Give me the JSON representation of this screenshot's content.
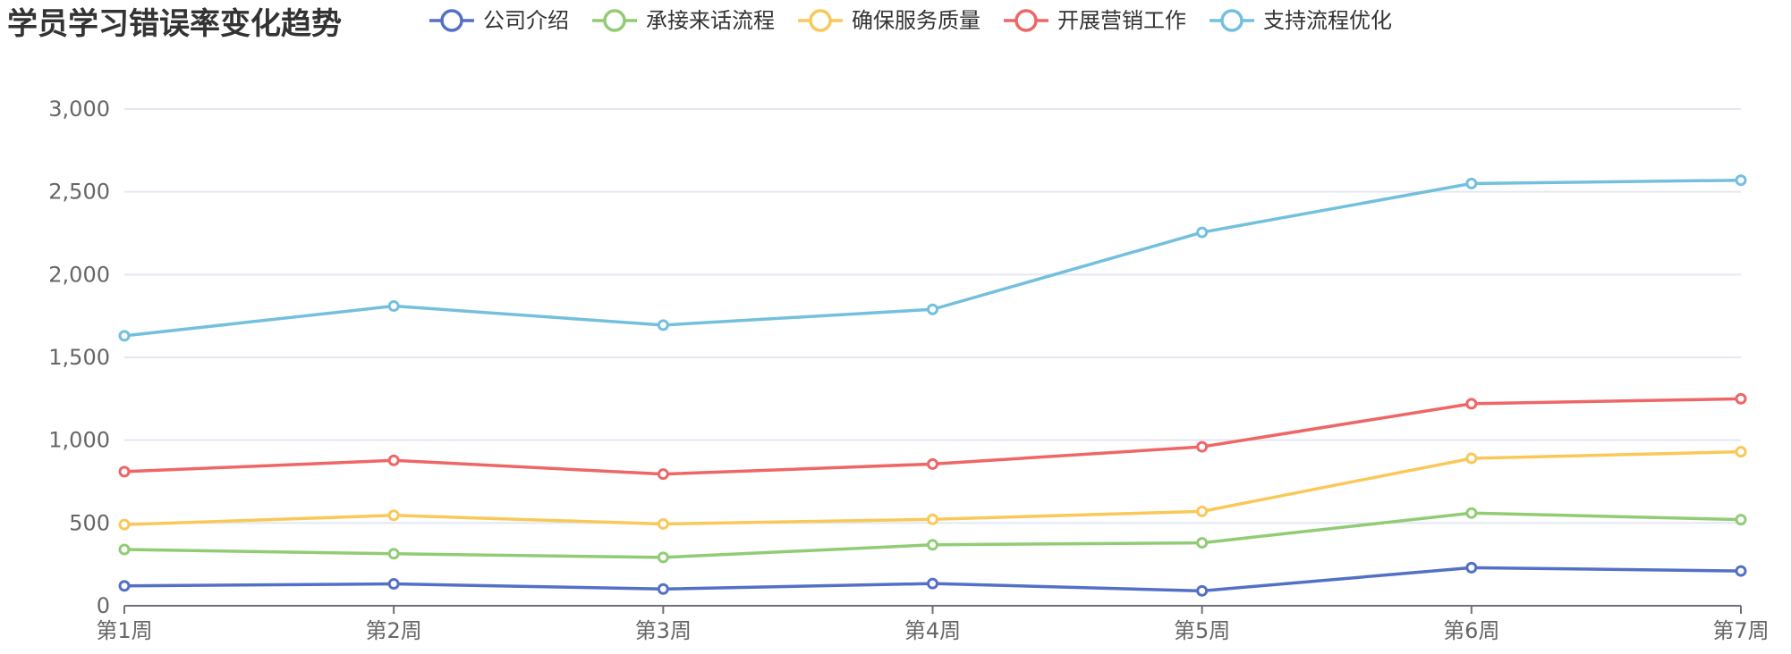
{
  "chart_data": {
    "type": "line",
    "title": "学员学习错误率变化趋势",
    "xlabel": "",
    "ylabel": "",
    "categories": [
      "第1周",
      "第2周",
      "第3周",
      "第4周",
      "第5周",
      "第6周",
      "第7周"
    ],
    "ylim": [
      0,
      3000
    ],
    "yticks": [
      "0",
      "500",
      "1,000",
      "1,500",
      "2,000",
      "2,500",
      "3,000"
    ],
    "grid": true,
    "legend_position": "top",
    "series": [
      {
        "name": "公司介绍",
        "color": "#5470c6",
        "values": [
          120,
          132,
          101,
          134,
          90,
          230,
          210
        ]
      },
      {
        "name": "承接来话流程",
        "color": "#91cc75",
        "values": [
          340,
          314,
          292,
          368,
          380,
          560,
          520
        ]
      },
      {
        "name": "确保服务质量",
        "color": "#fac858",
        "values": [
          490,
          546,
          494,
          522,
          570,
          890,
          930
        ]
      },
      {
        "name": "开展营销工作",
        "color": "#ee6666",
        "values": [
          810,
          878,
          795,
          856,
          960,
          1220,
          1250
        ]
      },
      {
        "name": "支持流程优化",
        "color": "#73c0de",
        "values": [
          1630,
          1810,
          1695,
          1790,
          2255,
          2550,
          2570
        ]
      }
    ]
  }
}
